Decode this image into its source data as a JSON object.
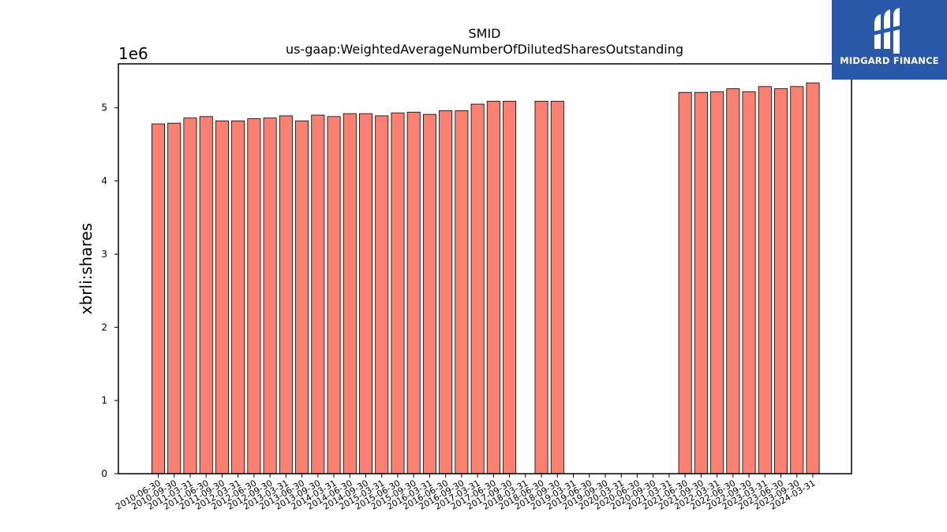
{
  "chart_data": {
    "type": "bar",
    "title": "SMID",
    "subtitle": "us-gaap:WeightedAverageNumberOfDilutedSharesOutstanding",
    "ylabel": "xbrli:shares",
    "xlabel": "",
    "offset_label": "1e6",
    "ylim": [
      0,
      5.6
    ],
    "yticks": [
      0,
      1,
      2,
      3,
      4,
      5
    ],
    "grid": false,
    "bar_color": "#fa8072",
    "edge_color": "#000000",
    "categories": [
      "2010-06-30",
      "2010-09-30",
      "2011-03-31",
      "2011-06-30",
      "2011-09-30",
      "2012-03-31",
      "2012-06-30",
      "2012-09-30",
      "2013-03-31",
      "2013-06-30",
      "2013-09-30",
      "2014-03-31",
      "2014-06-30",
      "2014-09-30",
      "2015-03-31",
      "2015-06-30",
      "2015-09-30",
      "2016-03-31",
      "2016-06-30",
      "2016-09-30",
      "2017-03-31",
      "2017-06-30",
      "2017-09-30",
      "2018-03-31",
      "2018-06-30",
      "2018-09-30",
      "2019-03-31",
      "2019-06-30",
      "2019-09-30",
      "2020-03-31",
      "2020-06-30",
      "2020-09-30",
      "2021-03-31",
      "2021-06-30",
      "2021-09-30",
      "2022-03-31",
      "2022-06-30",
      "2022-09-30",
      "2023-03-31",
      "2023-06-30",
      "2023-09-30",
      "2024-03-31"
    ],
    "values": [
      4.78,
      4.79,
      4.86,
      4.88,
      4.82,
      4.82,
      4.85,
      4.86,
      4.89,
      4.82,
      4.9,
      4.88,
      4.92,
      4.92,
      4.89,
      4.93,
      4.94,
      4.91,
      4.96,
      4.96,
      5.05,
      5.09,
      5.09,
      0,
      5.09,
      5.09,
      0,
      0,
      0,
      0,
      0,
      0,
      0,
      5.21,
      5.21,
      5.22,
      5.26,
      5.22,
      5.29,
      5.26,
      5.29,
      5.34
    ]
  },
  "logo": {
    "text": "MIDGARD FINANCE",
    "background": "#2a58a9"
  }
}
